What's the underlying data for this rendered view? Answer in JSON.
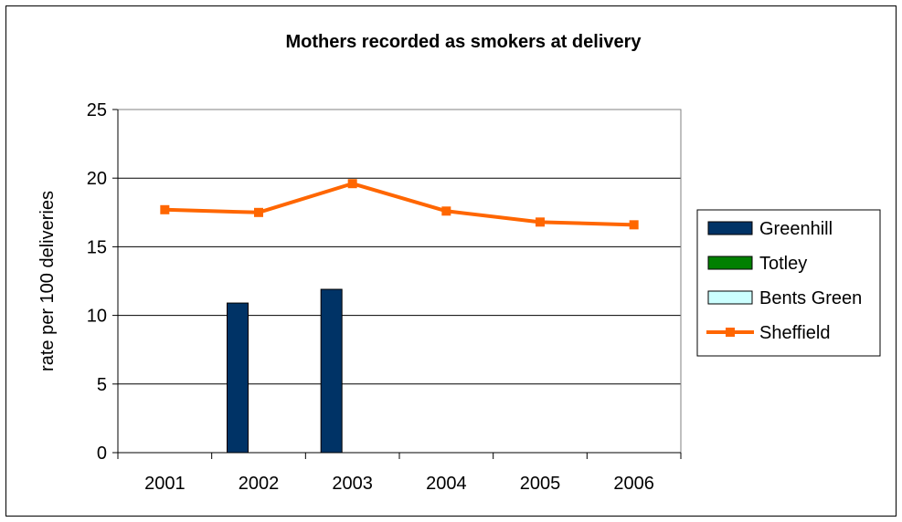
{
  "chart_data": {
    "type": "bar",
    "title": "Mothers recorded as smokers at delivery",
    "xlabel": "",
    "ylabel": "rate per 100 deliveries",
    "categories": [
      "2001",
      "2002",
      "2003",
      "2004",
      "2005",
      "2006"
    ],
    "ylim": [
      0,
      25
    ],
    "yticks": [
      "0",
      "5",
      "10",
      "15",
      "20",
      "25"
    ],
    "grid": true,
    "legend_position": "right",
    "series": [
      {
        "name": "Greenhill",
        "type": "bar",
        "color": "#003366",
        "values": [
          null,
          10.9,
          11.9,
          null,
          null,
          null
        ]
      },
      {
        "name": "Totley",
        "type": "bar",
        "color": "#008000",
        "values": [
          null,
          null,
          null,
          null,
          null,
          null
        ]
      },
      {
        "name": "Bents Green",
        "type": "bar",
        "color": "#CCFFFF",
        "values": [
          null,
          null,
          null,
          null,
          null,
          null
        ]
      },
      {
        "name": "Sheffield",
        "type": "line",
        "marker": "square",
        "color": "#FF6600",
        "values": [
          17.7,
          17.5,
          19.6,
          17.6,
          16.8,
          16.6
        ]
      }
    ]
  }
}
